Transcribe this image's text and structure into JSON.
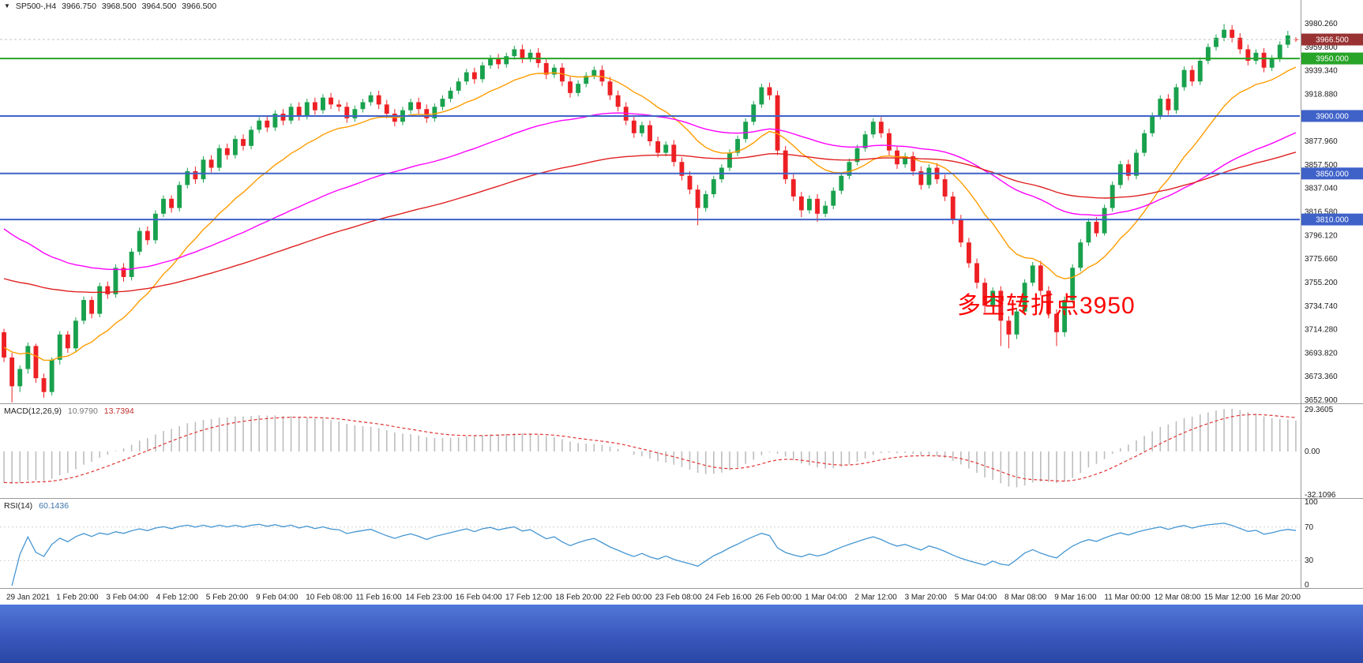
{
  "header": {
    "collapse_icon": "▼",
    "symbol_period": "SP500-,H4",
    "open": "3966.750",
    "high": "3968.500",
    "low": "3964.500",
    "close": "3966.500"
  },
  "annotation": {
    "text": "多空转折点3950",
    "color": "#ff0000"
  },
  "indicators": {
    "macd": {
      "label": "MACD(12,26,9)",
      "value_main": "10.9790",
      "value_signal": "13.7394",
      "axis_labels": [
        "29.3605",
        "0.00",
        "-32.1096"
      ],
      "histogram_color": "#bdbdbd",
      "signal_color": "#e23333"
    },
    "rsi": {
      "label": "RSI(14)",
      "value": "60.1436",
      "axis_labels": [
        "100",
        "70",
        "30",
        "0"
      ],
      "levels": [
        70,
        30
      ],
      "line_color": "#4596d2",
      "level_line_color": "#cfcfcf"
    }
  },
  "price_axis": {
    "ticks": [
      "3980.260",
      "3959.800",
      "3939.340",
      "3918.880",
      "3898.420",
      "3877.960",
      "3857.500",
      "3837.040",
      "3816.580",
      "3796.120",
      "3775.660",
      "3755.200",
      "3734.740",
      "3714.280",
      "3693.820",
      "3673.360",
      "3652.900"
    ],
    "tags": [
      {
        "price": 3966.5,
        "label": "3966.500",
        "bg": "#993333"
      },
      {
        "price": 3950.0,
        "label": "3950.000",
        "bg": "#28a428"
      },
      {
        "price": 3900.0,
        "label": "3900.000",
        "bg": "#3f62c9"
      },
      {
        "price": 3850.0,
        "label": "3850.000",
        "bg": "#3f62c9"
      },
      {
        "price": 3810.0,
        "label": "3810.000",
        "bg": "#3f62c9"
      }
    ]
  },
  "time_axis": {
    "labels": [
      "29 Jan 2021",
      "1 Feb 20:00",
      "3 Feb 04:00",
      "4 Feb 12:00",
      "5 Feb 20:00",
      "9 Feb 04:00",
      "10 Feb 08:00",
      "11 Feb 16:00",
      "14 Feb 23:00",
      "16 Feb 04:00",
      "17 Feb 12:00",
      "18 Feb 20:00",
      "22 Feb 00:00",
      "23 Feb 08:00",
      "24 Feb 16:00",
      "26 Feb 00:00",
      "1 Mar 04:00",
      "2 Mar 12:00",
      "3 Mar 20:00",
      "5 Mar 04:00",
      "8 Mar 08:00",
      "9 Mar 16:00",
      "11 Mar 00:00",
      "12 Mar 08:00",
      "15 Mar 12:00",
      "16 Mar 20:00"
    ]
  },
  "colors": {
    "background": "#ffffff",
    "bull": "#19a14d",
    "bear": "#ed2024",
    "axis_text": "#1c1c1c",
    "separator": "#9a9a9a",
    "current_line": "#c4c4c4",
    "level_blue": "#3f62c9",
    "level_green": "#28a428"
  },
  "chart_data": {
    "type": "candlestick",
    "title": "SP500- H4 candlestick chart with MACD and RSI",
    "symbol": "SP500-",
    "timeframe": "H4",
    "x_range": "29 Jan 2021 - 17 Mar 2021",
    "ylim": [
      3652.9,
      3980.26
    ],
    "current_price": 3966.5,
    "levels": [
      {
        "price": 3950,
        "color": "#28a428"
      },
      {
        "price": 3900,
        "color": "#3f62c9"
      },
      {
        "price": 3850,
        "color": "#3f62c9"
      },
      {
        "price": 3810,
        "color": "#3f62c9"
      }
    ],
    "moving_averages": [
      {
        "name": "fast-ma-orange",
        "period": 16,
        "seed": 3700,
        "color": "#ff9c00"
      },
      {
        "name": "mid-ma-magenta",
        "period": 55,
        "seed": 3806,
        "color": "#ff00ff"
      },
      {
        "name": "slow-ma-red",
        "period": 100,
        "seed": 3760,
        "color": "#e02020"
      }
    ],
    "macd": {
      "fast": 12,
      "slow": 26,
      "signal": 9,
      "seed_fast": 3712,
      "seed_slow": 3745
    },
    "rsi": {
      "period": 14
    },
    "candles": [
      [
        3712,
        3715,
        3686,
        3690
      ],
      [
        3690,
        3694,
        3651,
        3665
      ],
      [
        3665,
        3683,
        3660,
        3680
      ],
      [
        3680,
        3703,
        3676,
        3700
      ],
      [
        3700,
        3702,
        3668,
        3672
      ],
      [
        3672,
        3676,
        3655,
        3660
      ],
      [
        3660,
        3690,
        3657,
        3688
      ],
      [
        3688,
        3713,
        3684,
        3710
      ],
      [
        3710,
        3713,
        3694,
        3698
      ],
      [
        3698,
        3725,
        3695,
        3722
      ],
      [
        3722,
        3743,
        3719,
        3740
      ],
      [
        3740,
        3743,
        3724,
        3728
      ],
      [
        3728,
        3755,
        3725,
        3752
      ],
      [
        3752,
        3756,
        3741,
        3745
      ],
      [
        3745,
        3771,
        3742,
        3768
      ],
      [
        3768,
        3772,
        3756,
        3760
      ],
      [
        3760,
        3785,
        3757,
        3782
      ],
      [
        3782,
        3803,
        3779,
        3800
      ],
      [
        3800,
        3804,
        3788,
        3792
      ],
      [
        3792,
        3818,
        3789,
        3815
      ],
      [
        3815,
        3831,
        3812,
        3828
      ],
      [
        3828,
        3831,
        3816,
        3820
      ],
      [
        3820,
        3843,
        3817,
        3840
      ],
      [
        3840,
        3855,
        3837,
        3852
      ],
      [
        3852,
        3856,
        3841,
        3845
      ],
      [
        3845,
        3865,
        3842,
        3862
      ],
      [
        3862,
        3866,
        3851,
        3855
      ],
      [
        3855,
        3875,
        3852,
        3872
      ],
      [
        3872,
        3876,
        3862,
        3866
      ],
      [
        3866,
        3883,
        3863,
        3880
      ],
      [
        3880,
        3884,
        3870,
        3874
      ],
      [
        3874,
        3891,
        3871,
        3888
      ],
      [
        3888,
        3899,
        3885,
        3896
      ],
      [
        3896,
        3900,
        3886,
        3890
      ],
      [
        3890,
        3905,
        3887,
        3902
      ],
      [
        3902,
        3906,
        3892,
        3896
      ],
      [
        3896,
        3911,
        3893,
        3908
      ],
      [
        3908,
        3912,
        3896,
        3900
      ],
      [
        3900,
        3915,
        3897,
        3912
      ],
      [
        3912,
        3916,
        3901,
        3905
      ],
      [
        3905,
        3919,
        3902,
        3916
      ],
      [
        3916,
        3920,
        3906,
        3910
      ],
      [
        3910,
        3914,
        3904,
        3908
      ],
      [
        3908,
        3912,
        3894,
        3898
      ],
      [
        3898,
        3909,
        3895,
        3906
      ],
      [
        3906,
        3915,
        3903,
        3912
      ],
      [
        3912,
        3921,
        3909,
        3918
      ],
      [
        3918,
        3922,
        3906,
        3910
      ],
      [
        3910,
        3914,
        3898,
        3902
      ],
      [
        3902,
        3906,
        3891,
        3895
      ],
      [
        3895,
        3908,
        3892,
        3905
      ],
      [
        3905,
        3915,
        3902,
        3912
      ],
      [
        3912,
        3916,
        3902,
        3906
      ],
      [
        3906,
        3910,
        3894,
        3898
      ],
      [
        3898,
        3911,
        3895,
        3908
      ],
      [
        3908,
        3918,
        3905,
        3915
      ],
      [
        3915,
        3925,
        3912,
        3922
      ],
      [
        3922,
        3933,
        3919,
        3930
      ],
      [
        3930,
        3941,
        3927,
        3938
      ],
      [
        3938,
        3942,
        3928,
        3932
      ],
      [
        3932,
        3947,
        3929,
        3944
      ],
      [
        3944,
        3953,
        3941,
        3950
      ],
      [
        3950,
        3954,
        3941,
        3945
      ],
      [
        3945,
        3955,
        3942,
        3952
      ],
      [
        3952,
        3961,
        3949,
        3958
      ],
      [
        3958,
        3962,
        3946,
        3950
      ],
      [
        3950,
        3958,
        3947,
        3955
      ],
      [
        3955,
        3959,
        3942,
        3946
      ],
      [
        3946,
        3950,
        3932,
        3936
      ],
      [
        3936,
        3945,
        3933,
        3942
      ],
      [
        3942,
        3946,
        3926,
        3930
      ],
      [
        3930,
        3934,
        3916,
        3920
      ],
      [
        3920,
        3931,
        3917,
        3928
      ],
      [
        3928,
        3938,
        3925,
        3935
      ],
      [
        3935,
        3943,
        3932,
        3940
      ],
      [
        3940,
        3944,
        3926,
        3930
      ],
      [
        3930,
        3934,
        3914,
        3918
      ],
      [
        3918,
        3922,
        3904,
        3908
      ],
      [
        3908,
        3912,
        3892,
        3896
      ],
      [
        3896,
        3900,
        3881,
        3885
      ],
      [
        3885,
        3895,
        3882,
        3892
      ],
      [
        3892,
        3896,
        3874,
        3878
      ],
      [
        3878,
        3882,
        3864,
        3868
      ],
      [
        3868,
        3878,
        3865,
        3875
      ],
      [
        3875,
        3879,
        3856,
        3860
      ],
      [
        3860,
        3864,
        3844,
        3848
      ],
      [
        3848,
        3852,
        3832,
        3836
      ],
      [
        3836,
        3840,
        3805,
        3820
      ],
      [
        3820,
        3835,
        3817,
        3832
      ],
      [
        3832,
        3848,
        3829,
        3845
      ],
      [
        3845,
        3858,
        3842,
        3855
      ],
      [
        3855,
        3871,
        3852,
        3868
      ],
      [
        3868,
        3883,
        3865,
        3880
      ],
      [
        3880,
        3898,
        3877,
        3895
      ],
      [
        3895,
        3913,
        3892,
        3910
      ],
      [
        3910,
        3928,
        3907,
        3925
      ],
      [
        3925,
        3929,
        3914,
        3918
      ],
      [
        3918,
        3922,
        3866,
        3870
      ],
      [
        3870,
        3874,
        3841,
        3845
      ],
      [
        3845,
        3850,
        3826,
        3830
      ],
      [
        3830,
        3834,
        3812,
        3818
      ],
      [
        3818,
        3831,
        3815,
        3828
      ],
      [
        3828,
        3832,
        3808,
        3815
      ],
      [
        3815,
        3826,
        3812,
        3822
      ],
      [
        3822,
        3838,
        3819,
        3835
      ],
      [
        3835,
        3851,
        3832,
        3848
      ],
      [
        3848,
        3863,
        3845,
        3860
      ],
      [
        3860,
        3875,
        3857,
        3872
      ],
      [
        3872,
        3887,
        3869,
        3884
      ],
      [
        3884,
        3898,
        3881,
        3895
      ],
      [
        3895,
        3899,
        3881,
        3885
      ],
      [
        3885,
        3889,
        3866,
        3870
      ],
      [
        3870,
        3874,
        3854,
        3858
      ],
      [
        3858,
        3868,
        3855,
        3865
      ],
      [
        3865,
        3869,
        3848,
        3852
      ],
      [
        3852,
        3856,
        3836,
        3840
      ],
      [
        3840,
        3858,
        3837,
        3855
      ],
      [
        3855,
        3859,
        3841,
        3845
      ],
      [
        3845,
        3849,
        3826,
        3830
      ],
      [
        3830,
        3834,
        3806,
        3810
      ],
      [
        3810,
        3814,
        3786,
        3790
      ],
      [
        3790,
        3794,
        3768,
        3772
      ],
      [
        3772,
        3776,
        3750,
        3755
      ],
      [
        3755,
        3759,
        3729,
        3735
      ],
      [
        3735,
        3751,
        3731,
        3748
      ],
      [
        3748,
        3752,
        3700,
        3722
      ],
      [
        3722,
        3726,
        3698,
        3710
      ],
      [
        3710,
        3733,
        3706,
        3730
      ],
      [
        3730,
        3758,
        3727,
        3755
      ],
      [
        3755,
        3773,
        3752,
        3770
      ],
      [
        3770,
        3774,
        3744,
        3748
      ],
      [
        3748,
        3752,
        3724,
        3728
      ],
      [
        3728,
        3732,
        3700,
        3712
      ],
      [
        3712,
        3743,
        3708,
        3740
      ],
      [
        3740,
        3771,
        3737,
        3768
      ],
      [
        3768,
        3793,
        3765,
        3790
      ],
      [
        3790,
        3811,
        3787,
        3808
      ],
      [
        3808,
        3812,
        3795,
        3798
      ],
      [
        3798,
        3823,
        3796,
        3820
      ],
      [
        3820,
        3843,
        3817,
        3840
      ],
      [
        3840,
        3861,
        3837,
        3858
      ],
      [
        3858,
        3862,
        3844,
        3848
      ],
      [
        3848,
        3871,
        3845,
        3868
      ],
      [
        3868,
        3888,
        3865,
        3885
      ],
      [
        3885,
        3903,
        3882,
        3900
      ],
      [
        3900,
        3918,
        3897,
        3915
      ],
      [
        3915,
        3919,
        3901,
        3905
      ],
      [
        3905,
        3928,
        3902,
        3925
      ],
      [
        3925,
        3943,
        3922,
        3940
      ],
      [
        3940,
        3944,
        3926,
        3930
      ],
      [
        3930,
        3951,
        3927,
        3948
      ],
      [
        3948,
        3963,
        3945,
        3960
      ],
      [
        3960,
        3971,
        3957,
        3968
      ],
      [
        3968,
        3980,
        3965,
        3975
      ],
      [
        3975,
        3979,
        3964,
        3968
      ],
      [
        3968,
        3972,
        3954,
        3958
      ],
      [
        3958,
        3962,
        3944,
        3948
      ],
      [
        3948,
        3958,
        3945,
        3955
      ],
      [
        3955,
        3959,
        3938,
        3942
      ],
      [
        3942,
        3953,
        3939,
        3950
      ],
      [
        3950,
        3965,
        3947,
        3962
      ],
      [
        3962,
        3974,
        3959,
        3970
      ],
      [
        3966.75,
        3968.5,
        3964.5,
        3966.5
      ]
    ]
  }
}
